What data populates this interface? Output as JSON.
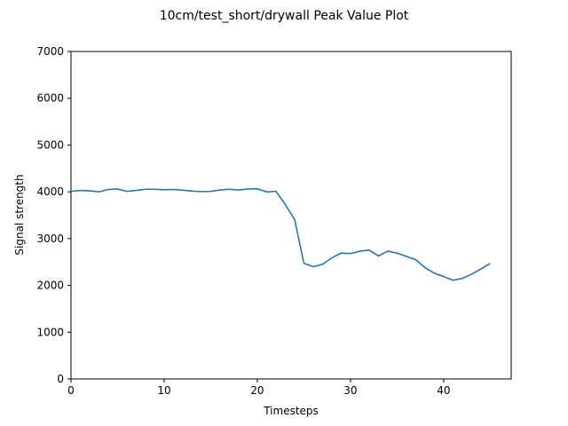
{
  "chart_data": {
    "type": "line",
    "title": "10cm/test_short/drywall Peak Value Plot",
    "xlabel": "Timesteps",
    "ylabel": "Signal strength",
    "xlim": [
      0,
      47.25
    ],
    "ylim": [
      0,
      7000
    ],
    "xticks": [
      0,
      10,
      20,
      30,
      40
    ],
    "yticks": [
      0,
      1000,
      2000,
      3000,
      4000,
      5000,
      6000,
      7000
    ],
    "grid": false,
    "series": [
      {
        "color": "#1f77b4",
        "x": [
          0,
          1,
          2,
          3,
          4,
          5,
          6,
          7,
          8,
          9,
          10,
          11,
          12,
          13,
          14,
          15,
          16,
          17,
          18,
          19,
          20,
          21,
          22,
          23,
          24,
          25,
          26,
          27,
          28,
          29,
          30,
          31,
          32,
          33,
          34,
          35,
          36,
          37,
          38,
          39,
          40,
          41,
          42,
          43,
          44,
          45
        ],
        "values": [
          4010,
          4030,
          4020,
          4000,
          4050,
          4060,
          4010,
          4030,
          4055,
          4055,
          4045,
          4050,
          4035,
          4015,
          4005,
          4010,
          4040,
          4055,
          4040,
          4060,
          4065,
          4000,
          4010,
          3730,
          3410,
          2470,
          2400,
          2450,
          2590,
          2690,
          2680,
          2730,
          2755,
          2630,
          2730,
          2690,
          2620,
          2550,
          2380,
          2260,
          2190,
          2110,
          2150,
          2240,
          2350,
          2470
        ]
      }
    ]
  }
}
